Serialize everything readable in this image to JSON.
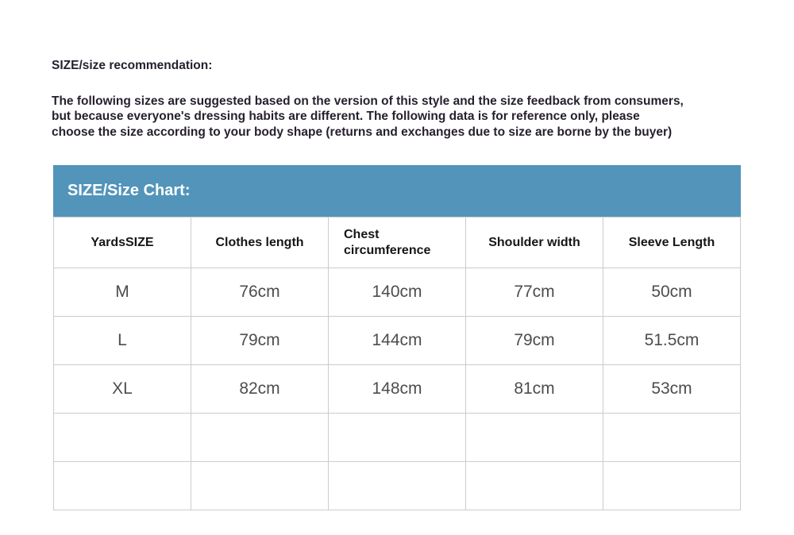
{
  "intro": {
    "title": "SIZE/size recommendation:",
    "description_lines": [
      "The following sizes are suggested based on the version of this style and the size feedback from consumers,",
      "but because everyone's dressing habits are different. The following data is for reference only, please",
      "choose the size according to your body shape (returns and exchanges due to size are borne by the buyer)"
    ]
  },
  "size_chart": {
    "title": "SIZE/Size Chart:",
    "columns": [
      "YardsSIZE",
      "Clothes length",
      "Chest circumference",
      "Shoulder width",
      "Sleeve Length"
    ],
    "rows": [
      [
        "M",
        "76cm",
        "140cm",
        "77cm",
        "50cm"
      ],
      [
        "L",
        "79cm",
        "144cm",
        "79cm",
        "51.5cm"
      ],
      [
        "XL",
        "82cm",
        "148cm",
        "81cm",
        "53cm"
      ],
      [
        "",
        "",
        "",
        "",
        ""
      ],
      [
        "",
        "",
        "",
        "",
        ""
      ]
    ]
  },
  "colors": {
    "accent_blue": "#5294ba",
    "intro_text": "#261f2e",
    "header_text": "#161616",
    "data_text": "#4d4d4d",
    "table_border": "#cccccc",
    "banner_text": "#ffffff"
  }
}
